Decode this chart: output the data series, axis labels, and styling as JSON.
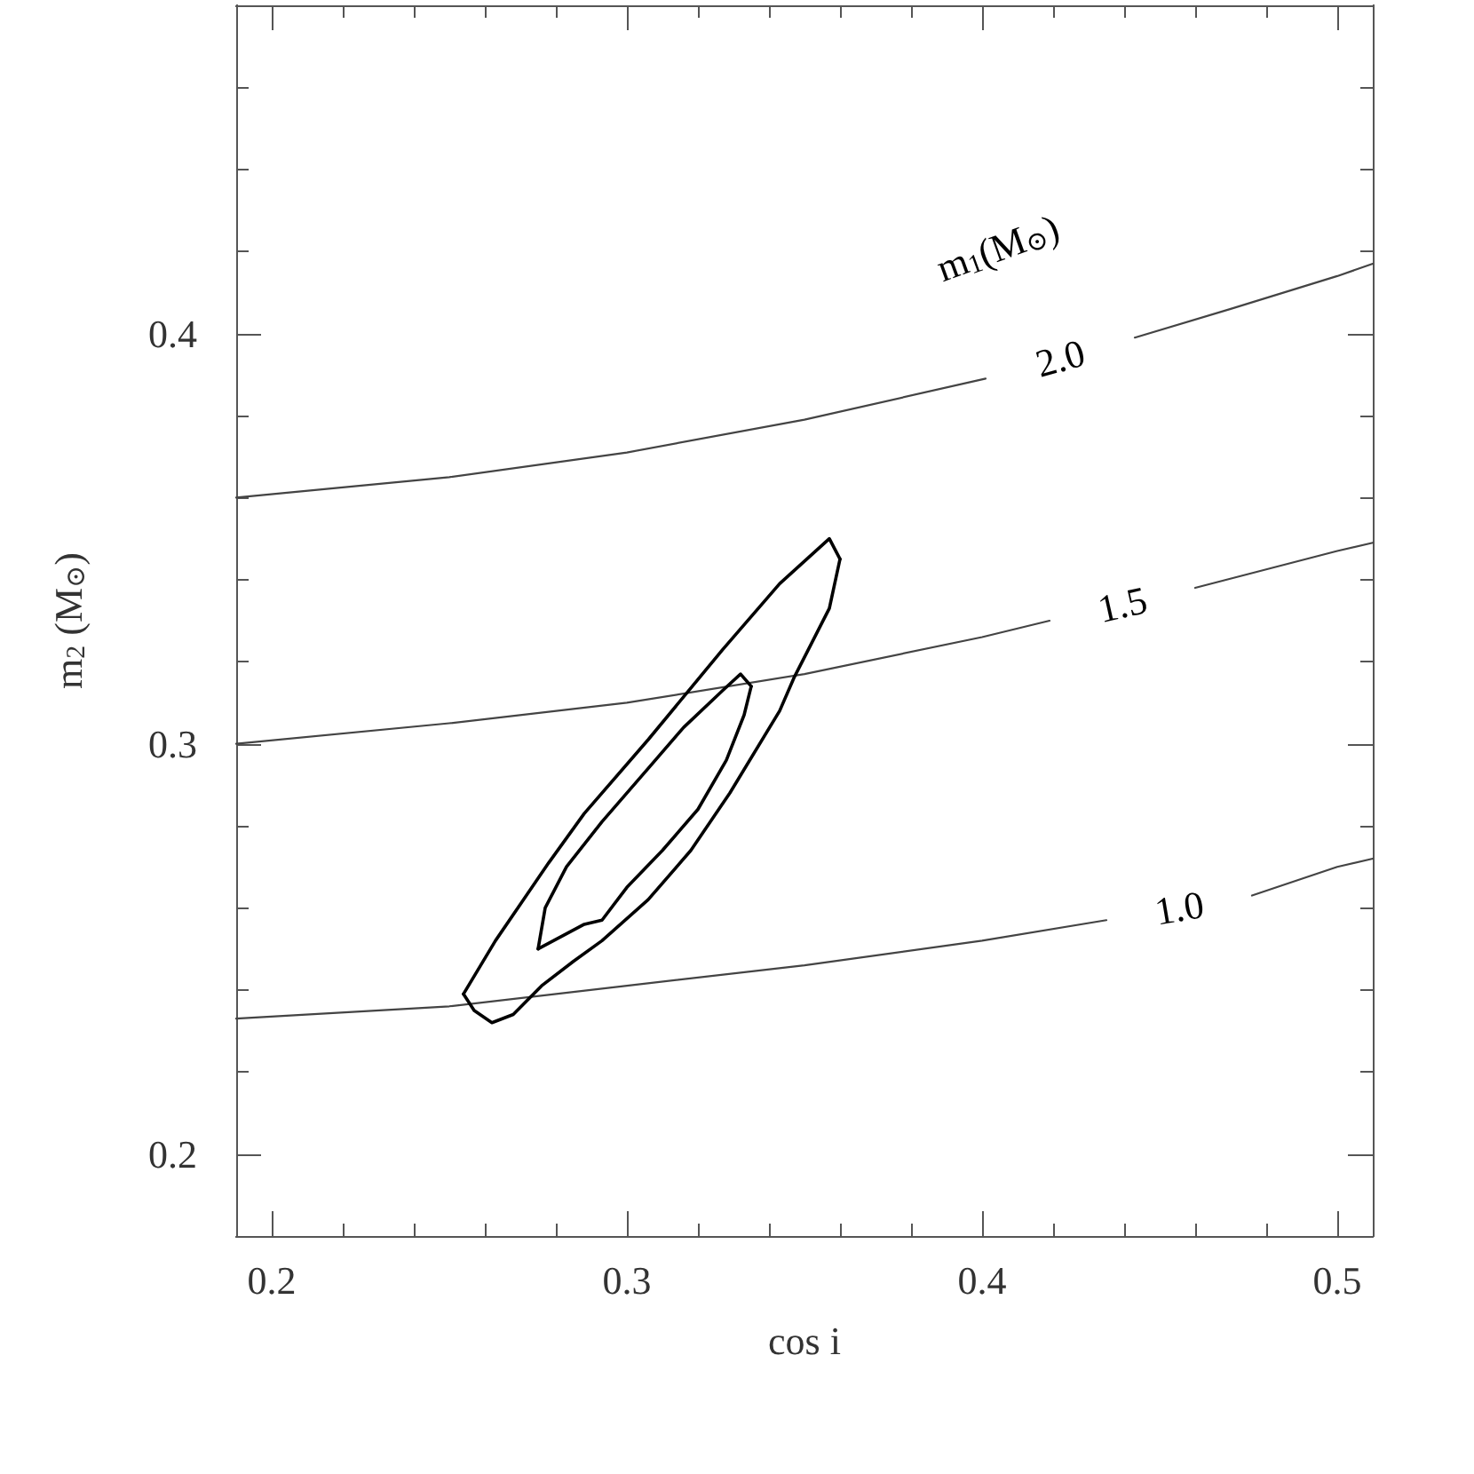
{
  "chart_data": {
    "type": "line",
    "xlabel": "cos i",
    "ylabel": "m$_{2}$ (M$_{⊙}$)",
    "xlim": [
      0.19,
      0.51
    ],
    "ylim": [
      0.18,
      0.48
    ],
    "xticks": [
      0.2,
      {
        "value": 0.22,
        "label": null
      },
      {
        "value": 0.24,
        "label": null
      },
      {
        "value": 0.26,
        "label": null
      },
      {
        "value": 0.28,
        "label": null
      },
      0.3,
      {
        "value": 0.32,
        "label": null
      },
      {
        "value": 0.34,
        "label": null
      },
      {
        "value": 0.36,
        "label": null
      },
      {
        "value": 0.38,
        "label": null
      },
      0.4,
      {
        "value": 0.42,
        "label": null
      },
      {
        "value": 0.44,
        "label": null
      },
      {
        "value": 0.46,
        "label": null
      },
      {
        "value": 0.48,
        "label": null
      },
      0.5
    ],
    "yticks": [
      0.2,
      {
        "value": 0.22,
        "label": null
      },
      {
        "value": 0.24,
        "label": null
      },
      {
        "value": 0.26,
        "label": null
      },
      {
        "value": 0.28,
        "label": null
      },
      0.3,
      {
        "value": 0.32,
        "label": null
      },
      {
        "value": 0.34,
        "label": null
      },
      {
        "value": 0.36,
        "label": null
      },
      {
        "value": 0.38,
        "label": null
      },
      0.4,
      {
        "value": 0.42,
        "label": null
      },
      {
        "value": 0.44,
        "label": null
      },
      {
        "value": 0.46,
        "label": null
      }
    ],
    "series": [
      {
        "color": "#444444",
        "x": [
          0.19,
          0.25,
          0.3,
          0.35,
          0.401,
          0.42,
          0.443,
          0.47,
          0.5,
          0.51
        ],
        "values": [
          0.36,
          0.365,
          0.371,
          0.379,
          0.389,
          null,
          0.399,
          0.406,
          0.414,
          0.417
        ]
      },
      {
        "color": "#444444",
        "x": [
          0.19,
          0.25,
          0.3,
          0.35,
          0.4,
          0.419,
          0.44,
          0.46,
          0.5,
          0.51
        ],
        "values": [
          0.3,
          0.305,
          0.31,
          0.317,
          0.326,
          0.33,
          null,
          0.338,
          0.347,
          0.349
        ]
      },
      {
        "color": "#444444",
        "x": [
          0.19,
          0.25,
          0.3,
          0.35,
          0.4,
          0.435,
          0.455,
          0.476,
          0.5,
          0.51
        ],
        "values": [
          0.233,
          0.236,
          0.241,
          0.246,
          0.252,
          0.257,
          null,
          0.263,
          0.27,
          0.272
        ]
      },
      {
        "color": "#000000",
        "x": [
          0.254,
          0.263,
          0.278,
          0.288,
          0.306,
          0.327,
          0.343,
          0.357,
          0.36
        ],
        "values": [
          0.239,
          0.252,
          0.271,
          0.283,
          0.301,
          0.323,
          0.339,
          0.35,
          0.345
        ]
      },
      {
        "color": "#000000",
        "x": [
          0.254,
          0.257,
          0.262,
          0.268,
          0.276,
          0.285,
          0.293,
          0.306,
          0.318,
          0.329,
          0.343,
          0.347,
          0.357,
          0.36
        ],
        "values": [
          0.239,
          0.235,
          0.232,
          0.234,
          0.241,
          0.247,
          0.252,
          0.262,
          0.274,
          0.288,
          0.308,
          0.316,
          0.333,
          0.345
        ]
      },
      {
        "color": "#000000",
        "x": [
          0.275,
          0.277,
          0.283,
          0.293,
          0.306,
          0.316,
          0.327,
          0.332,
          0.335
        ],
        "values": [
          0.25,
          0.26,
          0.27,
          0.281,
          0.294,
          0.304,
          0.313,
          0.317,
          0.314
        ]
      },
      {
        "color": "#000000",
        "x": [
          0.275,
          0.288,
          0.293,
          0.3,
          0.31,
          0.32,
          0.328,
          0.333,
          0.335
        ],
        "values": [
          0.25,
          0.256,
          0.257,
          0.265,
          0.274,
          0.284,
          0.296,
          0.307,
          0.314
        ]
      }
    ],
    "annotations": [
      "2.0",
      "1.5",
      "1.0",
      "m$_{1}$(M$_{⊙}$)"
    ]
  }
}
